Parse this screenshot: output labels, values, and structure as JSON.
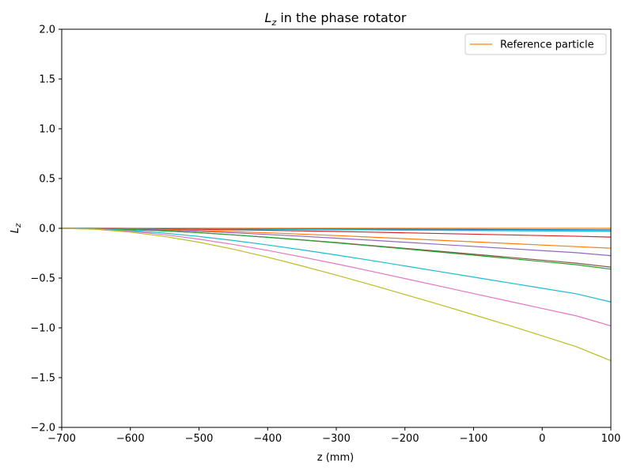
{
  "chart_data": {
    "type": "line",
    "title_main": "L",
    "title_sub": "z",
    "title_rest": " in the phase rotator",
    "xlabel": "z (mm)",
    "ylabel_main": "L",
    "ylabel_sub": "z",
    "xlim": [
      -700,
      100
    ],
    "ylim": [
      -2.0,
      2.0
    ],
    "xticks": [
      -700,
      -600,
      -500,
      -400,
      -300,
      -200,
      -100,
      0,
      100
    ],
    "xtick_labels": [
      "−700",
      "−600",
      "−500",
      "−400",
      "−300",
      "−200",
      "−100",
      "0",
      "100"
    ],
    "yticks": [
      -2.0,
      -1.5,
      -1.0,
      -0.5,
      0.0,
      0.5,
      1.0,
      1.5,
      2.0
    ],
    "ytick_labels": [
      "−2.0",
      "−1.5",
      "−1.0",
      "−0.5",
      "0.0",
      "0.5",
      "1.0",
      "1.5",
      "2.0"
    ],
    "grid": false,
    "legend_position": "upper-right",
    "x": [
      -700,
      -650,
      -600,
      -550,
      -500,
      -450,
      -400,
      -350,
      -300,
      -250,
      -200,
      -150,
      -100,
      -50,
      0,
      50,
      100
    ],
    "series": [
      {
        "name": "Reference particle",
        "color": "#ff7f0e",
        "values": [
          0,
          0,
          0,
          0,
          0,
          0,
          0,
          0,
          0,
          0,
          0,
          0,
          0,
          0,
          0,
          0,
          0
        ]
      },
      {
        "color": "#1f77b4",
        "values": [
          0,
          0,
          -0.001,
          -0.002,
          -0.003,
          -0.004,
          -0.005,
          -0.006,
          -0.007,
          -0.008,
          -0.009,
          -0.01,
          -0.011,
          -0.012,
          -0.013,
          -0.014,
          -0.015
        ]
      },
      {
        "color": "#7f7f7f",
        "values": [
          0,
          0,
          -0.001,
          -0.003,
          -0.005,
          -0.007,
          -0.009,
          -0.011,
          -0.013,
          -0.015,
          -0.017,
          -0.019,
          -0.021,
          -0.023,
          -0.025,
          -0.027,
          -0.028
        ]
      },
      {
        "color": "#17becf",
        "values": [
          0,
          -0.001,
          -0.002,
          -0.004,
          -0.006,
          -0.008,
          -0.01,
          -0.012,
          -0.014,
          -0.016,
          -0.018,
          -0.02,
          -0.022,
          -0.024,
          -0.026,
          -0.028,
          -0.03
        ]
      },
      {
        "color": "#d62728",
        "values": [
          0,
          -0.001,
          -0.003,
          -0.006,
          -0.01,
          -0.015,
          -0.02,
          -0.026,
          -0.032,
          -0.038,
          -0.045,
          -0.052,
          -0.059,
          -0.066,
          -0.073,
          -0.08,
          -0.088
        ]
      },
      {
        "color": "#ff7f0e",
        "values": [
          0,
          -0.002,
          -0.006,
          -0.013,
          -0.022,
          -0.033,
          -0.045,
          -0.059,
          -0.073,
          -0.088,
          -0.104,
          -0.12,
          -0.136,
          -0.152,
          -0.168,
          -0.184,
          -0.2
        ]
      },
      {
        "color": "#9467bd",
        "values": [
          0,
          -0.002,
          -0.008,
          -0.017,
          -0.03,
          -0.045,
          -0.062,
          -0.08,
          -0.099,
          -0.119,
          -0.14,
          -0.161,
          -0.182,
          -0.203,
          -0.224,
          -0.245,
          -0.275
        ]
      },
      {
        "color": "#8c564b",
        "values": [
          0,
          -0.003,
          -0.012,
          -0.026,
          -0.044,
          -0.066,
          -0.09,
          -0.116,
          -0.143,
          -0.172,
          -0.201,
          -0.23,
          -0.26,
          -0.29,
          -0.32,
          -0.35,
          -0.39
        ]
      },
      {
        "color": "#2ca02c",
        "values": [
          0,
          -0.003,
          -0.012,
          -0.026,
          -0.044,
          -0.066,
          -0.09,
          -0.117,
          -0.146,
          -0.176,
          -0.207,
          -0.238,
          -0.27,
          -0.302,
          -0.334,
          -0.366,
          -0.41
        ]
      },
      {
        "color": "#17becf",
        "values": [
          0,
          -0.006,
          -0.022,
          -0.048,
          -0.082,
          -0.122,
          -0.167,
          -0.216,
          -0.268,
          -0.322,
          -0.378,
          -0.434,
          -0.49,
          -0.546,
          -0.602,
          -0.658,
          -0.74
        ]
      },
      {
        "color": "#e377c2",
        "values": [
          0,
          -0.008,
          -0.03,
          -0.064,
          -0.109,
          -0.162,
          -0.222,
          -0.288,
          -0.357,
          -0.43,
          -0.505,
          -0.58,
          -0.655,
          -0.73,
          -0.805,
          -0.88,
          -0.98
        ]
      },
      {
        "color": "#bcbd22",
        "values": [
          0,
          -0.01,
          -0.038,
          -0.082,
          -0.14,
          -0.21,
          -0.29,
          -0.378,
          -0.47,
          -0.566,
          -0.665,
          -0.765,
          -0.868,
          -0.972,
          -1.08,
          -1.19,
          -1.33
        ]
      }
    ]
  }
}
